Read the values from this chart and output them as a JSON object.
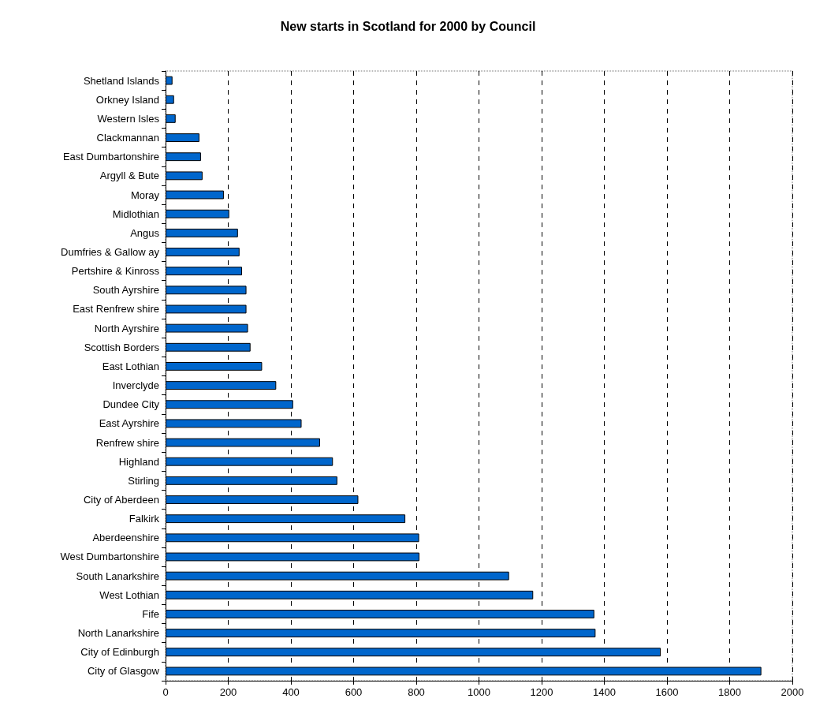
{
  "chart_data": {
    "type": "bar",
    "orientation": "horizontal",
    "title": "New starts in Scotland for 2000 by Council",
    "categories": [
      "Shetland Islands",
      "Orkney Island",
      "Western Isles",
      "Clackmannan",
      "East Dumbartonshire",
      "Argyll & Bute",
      "Moray",
      "Midlothian",
      "Angus",
      "Dumfries & Gallow ay",
      "Pertshire & Kinross",
      "South Ayrshire",
      "East Renfrew shire",
      "North Ayrshire",
      "Scottish Borders",
      "East Lothian",
      "Inverclyde",
      "Dundee City",
      "East Ayrshire",
      "Renfrew shire",
      "Highland",
      "Stirling",
      "City of Aberdeen",
      "Falkirk",
      "Aberdeenshire",
      "West Dumbartonshire",
      "South Lanarkshire",
      "West Lothian",
      "Fife",
      "North Lanarkshire",
      "City of Edinburgh",
      "City of Glasgow"
    ],
    "values": [
      22,
      27,
      32,
      108,
      113,
      118,
      186,
      203,
      231,
      236,
      244,
      258,
      258,
      263,
      271,
      308,
      353,
      407,
      434,
      493,
      534,
      548,
      615,
      765,
      809,
      810,
      1096,
      1173,
      1368,
      1372,
      1580,
      1901
    ],
    "color": "#0066cc",
    "xlim": [
      0,
      2000
    ],
    "xticks": [
      0,
      200,
      400,
      600,
      800,
      1000,
      1200,
      1400,
      1600,
      1800,
      2000
    ],
    "grid": "x"
  }
}
